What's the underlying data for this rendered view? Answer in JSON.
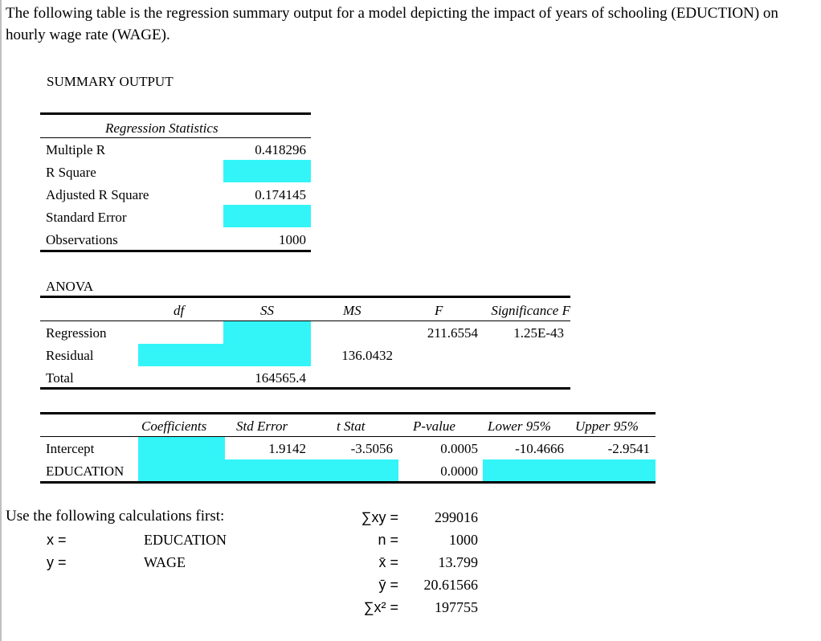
{
  "intro": "The following table is the regression summary output for a model depicting the impact of years of schooling (EDUCTION) on hourly wage rate (WAGE).",
  "summary_title": "SUMMARY OUTPUT",
  "regression_statistics": {
    "header": "Regression Statistics",
    "rows": [
      {
        "label": "Multiple R",
        "value": "0.418296"
      },
      {
        "label": "R Square",
        "value": ""
      },
      {
        "label": "Adjusted R Square",
        "value": "0.174145"
      },
      {
        "label": "Standard Error",
        "value": ""
      },
      {
        "label": "Observations",
        "value": "1000"
      }
    ]
  },
  "anova": {
    "title": "ANOVA",
    "headers": [
      "df",
      "SS",
      "MS",
      "F",
      "Significance F"
    ],
    "rows": [
      {
        "label": "Regression",
        "df": "",
        "ss": "",
        "ms": "",
        "f": "211.6554",
        "sigf": "1.25E-43"
      },
      {
        "label": "Residual",
        "df": "",
        "ss": "",
        "ms": "136.0432",
        "f": "",
        "sigf": ""
      },
      {
        "label": "Total",
        "df": "",
        "ss": "164565.4",
        "ms": "",
        "f": "",
        "sigf": ""
      }
    ]
  },
  "coefficients": {
    "headers": [
      "Coefficients",
      "Std Error",
      "t Stat",
      "P-value",
      "Lower 95%",
      "Upper 95%"
    ],
    "rows": [
      {
        "label": "Intercept",
        "coef": "",
        "se": "1.9142",
        "t": "-3.5056",
        "p": "0.0005",
        "lower": "-10.4666",
        "upper": "-2.9541"
      },
      {
        "label": "EDUCATION",
        "coef": "",
        "se": "",
        "t": "",
        "p": "0.0000",
        "lower": "",
        "upper": ""
      }
    ]
  },
  "calculations": {
    "title": "Use the following calculations first:",
    "vars": [
      {
        "sym": "x =",
        "name": "EDUCATION"
      },
      {
        "sym": "y =",
        "name": "WAGE"
      }
    ],
    "sums": [
      {
        "sym": "∑xy =",
        "value": "299016"
      },
      {
        "sym": "n =",
        "value": "1000"
      },
      {
        "sym": "x̄ =",
        "value": "13.799"
      },
      {
        "sym": "ȳ =",
        "value": "20.61566"
      },
      {
        "sym": "∑x² =",
        "value": "197755"
      }
    ]
  },
  "colors": {
    "highlight": "#33f5f8"
  }
}
